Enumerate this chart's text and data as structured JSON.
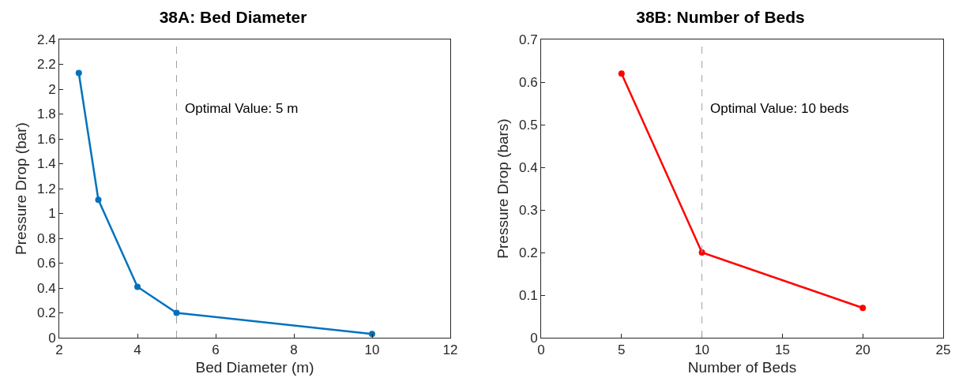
{
  "chart_data": [
    {
      "type": "line",
      "title": "38A: Bed Diameter",
      "xlabel": "Bed Diameter (m)",
      "ylabel": "Pressure Drop (bar)",
      "x": [
        2.5,
        3,
        4,
        5,
        10
      ],
      "series": [
        {
          "color": "#0072bd",
          "values": [
            2.13,
            1.11,
            0.41,
            0.2,
            0.03
          ]
        }
      ],
      "xlim": [
        2,
        12
      ],
      "xticks": [
        2,
        4,
        6,
        8,
        10,
        12
      ],
      "ylim": [
        0,
        2.4
      ],
      "yticks": [
        0,
        0.2,
        0.4,
        0.6,
        0.8,
        1,
        1.2,
        1.4,
        1.6,
        1.8,
        2,
        2.2,
        2.4
      ],
      "ref_lines": [
        {
          "axis": "x",
          "value": 5,
          "label": "Optimal Value: 5 m",
          "color": "#a0a0a0",
          "line_style": "dashed"
        }
      ],
      "marker": "circle",
      "line_style": "solid",
      "grid": false
    },
    {
      "type": "line",
      "title": "38B: Number of Beds",
      "xlabel": "Number of Beds",
      "ylabel": "Pressure Drop (bars)",
      "x": [
        5,
        10,
        20
      ],
      "series": [
        {
          "color": "#ff0000",
          "values": [
            0.62,
            0.2,
            0.07
          ]
        }
      ],
      "xlim": [
        0,
        25
      ],
      "xticks": [
        0,
        5,
        10,
        15,
        20,
        25
      ],
      "ylim": [
        0,
        0.7
      ],
      "yticks": [
        0,
        0.1,
        0.2,
        0.3,
        0.4,
        0.5,
        0.6,
        0.7
      ],
      "ref_lines": [
        {
          "axis": "x",
          "value": 10,
          "label": "Optimal Value: 10 beds",
          "color": "#a0a0a0",
          "line_style": "dashed"
        }
      ],
      "marker": "circle",
      "line_style": "solid",
      "grid": false
    }
  ]
}
